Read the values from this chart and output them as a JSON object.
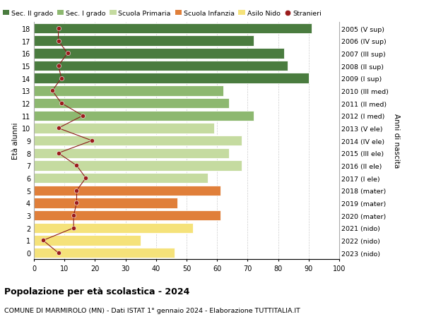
{
  "ages": [
    0,
    1,
    2,
    3,
    4,
    5,
    6,
    7,
    8,
    9,
    10,
    11,
    12,
    13,
    14,
    15,
    16,
    17,
    18
  ],
  "right_labels": [
    "2023 (nido)",
    "2022 (nido)",
    "2021 (nido)",
    "2020 (mater)",
    "2019 (mater)",
    "2018 (mater)",
    "2017 (I ele)",
    "2016 (II ele)",
    "2015 (III ele)",
    "2014 (IV ele)",
    "2013 (V ele)",
    "2012 (I med)",
    "2011 (II med)",
    "2010 (III med)",
    "2009 (I sup)",
    "2008 (II sup)",
    "2007 (III sup)",
    "2006 (IV sup)",
    "2005 (V sup)"
  ],
  "bar_values": [
    46,
    35,
    52,
    61,
    47,
    61,
    57,
    68,
    64,
    68,
    59,
    72,
    64,
    62,
    90,
    83,
    82,
    72,
    91
  ],
  "bar_colors": [
    "#f5e27a",
    "#f5e27a",
    "#f5e27a",
    "#e07f3a",
    "#e07f3a",
    "#e07f3a",
    "#c5dba0",
    "#c5dba0",
    "#c5dba0",
    "#c5dba0",
    "#c5dba0",
    "#8db870",
    "#8db870",
    "#8db870",
    "#4a7c3f",
    "#4a7c3f",
    "#4a7c3f",
    "#4a7c3f",
    "#4a7c3f"
  ],
  "stranieri_values": [
    8,
    3,
    13,
    13,
    14,
    14,
    17,
    14,
    8,
    19,
    8,
    16,
    9,
    6,
    9,
    8,
    11,
    8,
    8
  ],
  "legend_labels": [
    "Sec. II grado",
    "Sec. I grado",
    "Scuola Primaria",
    "Scuola Infanzia",
    "Asilo Nido",
    "Stranieri"
  ],
  "legend_colors": [
    "#4a7c3f",
    "#8db870",
    "#c5dba0",
    "#e07f3a",
    "#f5e27a",
    "#9b1c1c"
  ],
  "title_bold": "Popolazione per età scolastica - 2024",
  "subtitle": "COMUNE DI MARMIROLO (MN) - Dati ISTAT 1° gennaio 2024 - Elaborazione TUTTITALIA.IT",
  "ylabel_left": "Età alunni",
  "ylabel_right": "Anni di nascita",
  "xlim": [
    0,
    100
  ],
  "bg_color": "#ffffff",
  "grid_color": "#cccccc",
  "bar_height": 0.82
}
